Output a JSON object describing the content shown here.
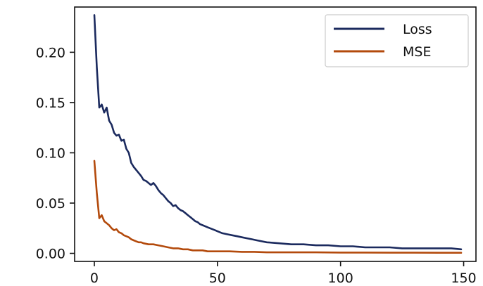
{
  "chart_data": {
    "type": "line",
    "title": "",
    "xlabel": "",
    "ylabel": "",
    "xlim": [
      -8,
      155
    ],
    "ylim": [
      -0.008,
      0.245
    ],
    "x_ticks": [
      0,
      50,
      100,
      150
    ],
    "x_tick_labels": [
      "0",
      "50",
      "100",
      "150"
    ],
    "y_ticks": [
      0.0,
      0.05,
      0.1,
      0.15,
      0.2
    ],
    "y_tick_labels": [
      "0.00",
      "0.05",
      "0.10",
      "0.15",
      "0.20"
    ],
    "grid": false,
    "legend_position": "top-right",
    "series": [
      {
        "name": "Loss",
        "color": "#1b2a5e",
        "x": [
          0,
          1,
          2,
          3,
          4,
          5,
          6,
          7,
          8,
          9,
          10,
          11,
          12,
          13,
          14,
          15,
          16,
          17,
          18,
          19,
          20,
          21,
          22,
          23,
          24,
          25,
          26,
          27,
          28,
          29,
          30,
          31,
          32,
          33,
          34,
          35,
          36,
          37,
          38,
          39,
          40,
          41,
          42,
          43,
          44,
          45,
          46,
          47,
          48,
          49,
          50,
          52,
          54,
          56,
          58,
          60,
          62,
          64,
          66,
          68,
          70,
          75,
          80,
          85,
          90,
          95,
          100,
          105,
          110,
          115,
          120,
          125,
          130,
          135,
          140,
          145,
          149
        ],
        "y": [
          0.237,
          0.185,
          0.145,
          0.148,
          0.14,
          0.145,
          0.132,
          0.128,
          0.12,
          0.117,
          0.118,
          0.112,
          0.113,
          0.104,
          0.1,
          0.09,
          0.086,
          0.083,
          0.08,
          0.077,
          0.073,
          0.072,
          0.07,
          0.068,
          0.07,
          0.067,
          0.063,
          0.06,
          0.058,
          0.055,
          0.052,
          0.05,
          0.047,
          0.048,
          0.045,
          0.043,
          0.042,
          0.04,
          0.038,
          0.036,
          0.034,
          0.032,
          0.031,
          0.029,
          0.028,
          0.027,
          0.026,
          0.025,
          0.024,
          0.023,
          0.022,
          0.02,
          0.019,
          0.018,
          0.017,
          0.016,
          0.015,
          0.014,
          0.013,
          0.012,
          0.011,
          0.01,
          0.009,
          0.009,
          0.008,
          0.008,
          0.007,
          0.007,
          0.006,
          0.006,
          0.006,
          0.005,
          0.005,
          0.005,
          0.005,
          0.005,
          0.004
        ]
      },
      {
        "name": "MSE",
        "color": "#b34a0c",
        "x": [
          0,
          1,
          2,
          3,
          4,
          5,
          6,
          7,
          8,
          9,
          10,
          11,
          12,
          13,
          14,
          15,
          16,
          17,
          18,
          19,
          20,
          22,
          24,
          26,
          28,
          30,
          32,
          34,
          36,
          38,
          40,
          42,
          44,
          46,
          48,
          50,
          55,
          60,
          65,
          70,
          75,
          80,
          90,
          100,
          110,
          120,
          130,
          140,
          149
        ],
        "y": [
          0.092,
          0.06,
          0.035,
          0.038,
          0.032,
          0.03,
          0.028,
          0.025,
          0.023,
          0.024,
          0.021,
          0.02,
          0.018,
          0.017,
          0.016,
          0.014,
          0.013,
          0.012,
          0.011,
          0.011,
          0.01,
          0.009,
          0.009,
          0.008,
          0.007,
          0.006,
          0.005,
          0.005,
          0.004,
          0.004,
          0.003,
          0.003,
          0.003,
          0.002,
          0.002,
          0.002,
          0.002,
          0.0015,
          0.0015,
          0.001,
          0.001,
          0.001,
          0.001,
          0.0008,
          0.0008,
          0.0007,
          0.0007,
          0.0006,
          0.0006
        ]
      }
    ]
  }
}
